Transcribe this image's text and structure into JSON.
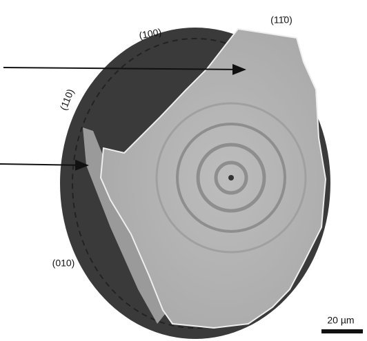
{
  "labels": {
    "face_100": "(100)",
    "face_1bar10": "(11̄0)",
    "face_110": "(110)",
    "face_010": "(010)",
    "scale_bar": "20 µm"
  }
}
